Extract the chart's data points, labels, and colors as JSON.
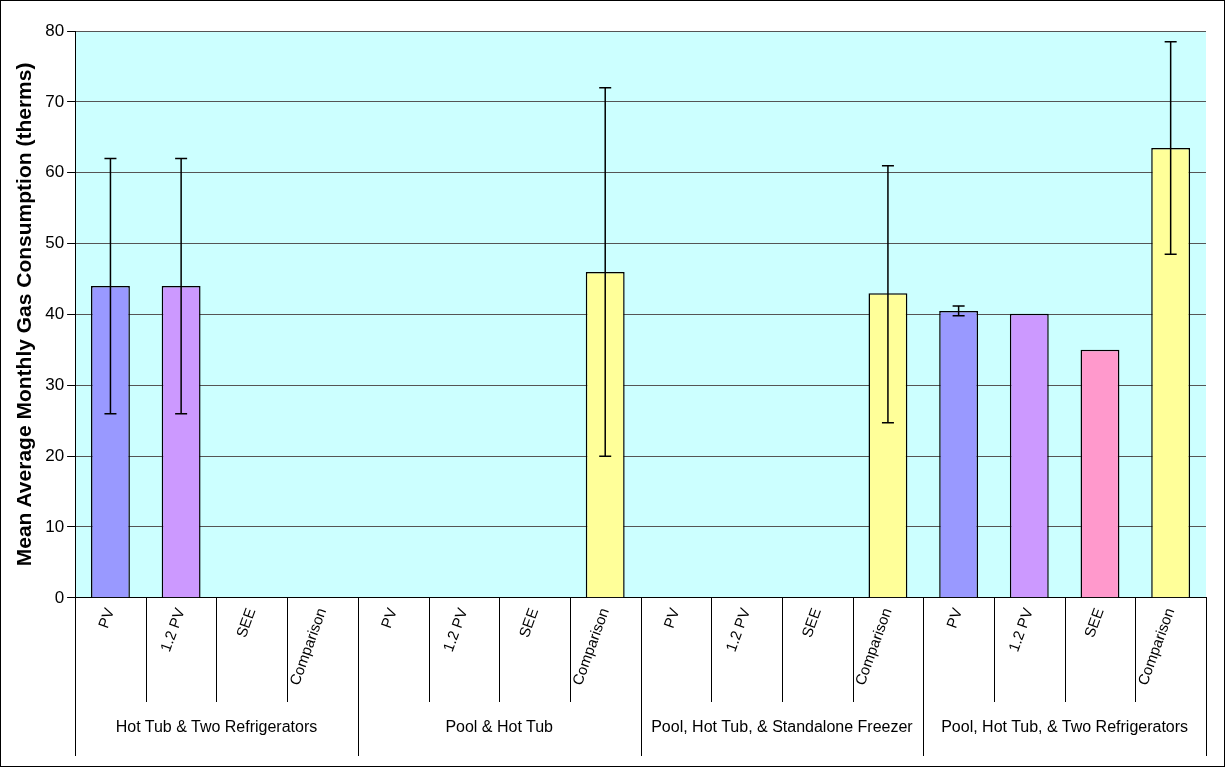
{
  "chart_data": {
    "type": "bar",
    "ylabel": "Mean Average Monthly Gas Consumption (therms)",
    "categories": [
      "PV",
      "1.2 PV",
      "SEE",
      "Comparison",
      "PV",
      "1.2 PV",
      "SEE",
      "Comparison",
      "PV",
      "1.2 PV",
      "SEE",
      "Comparison",
      "PV",
      "1.2 PV",
      "SEE",
      "Comparison"
    ],
    "values": [
      44,
      44,
      null,
      null,
      null,
      null,
      null,
      46,
      null,
      null,
      null,
      43,
      40.5,
      40.1,
      35,
      63.5
    ],
    "errors": [
      18,
      18,
      null,
      null,
      null,
      null,
      null,
      26,
      null,
      null,
      null,
      [
        24.7,
        61
      ],
      0.7,
      null,
      null,
      15
    ],
    "colors": [
      "#9999ff",
      "#cc99ff",
      "#ff99cc",
      "#ffff99",
      "#9999ff",
      "#cc99ff",
      "#ff99cc",
      "#ffff99",
      "#9999ff",
      "#cc99ff",
      "#ff99cc",
      "#ffff99",
      "#9999ff",
      "#cc99ff",
      "#ff99cc",
      "#ffff99"
    ],
    "annotations": [
      "Hot Tub & Two Refrigerators",
      "Pool & Hot Tub",
      "Pool, Hot Tub, & Standalone Freezer",
      "Pool, Hot Tub, & Two Refrigerators"
    ],
    "ylim": [
      0,
      80
    ],
    "yticks": [
      0,
      10,
      20,
      30,
      40,
      50,
      60,
      70,
      80
    ],
    "grid": "y",
    "legend": false
  }
}
